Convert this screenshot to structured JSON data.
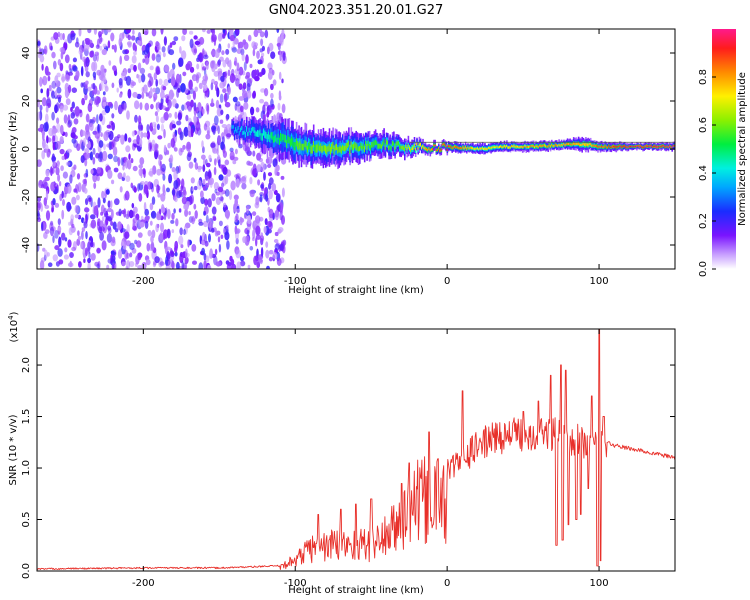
{
  "title": "GN04.2023.351.20.01.G27",
  "chart_data": [
    {
      "type": "heatmap",
      "xlabel": "Height of straight line (km)",
      "ylabel": "Frequency (Hz)",
      "xlim": [
        -270,
        150
      ],
      "ylim": [
        -50,
        50
      ],
      "xticks": [
        -200,
        -100,
        0,
        100
      ],
      "yticks": [
        -40,
        -20,
        0,
        20,
        40
      ],
      "noise_region_x": [
        -270,
        -115
      ],
      "ridge": {
        "x": [
          -140,
          -120,
          -100,
          -80,
          -60,
          -45,
          -30,
          -10,
          0,
          20,
          40,
          60,
          80,
          90,
          100,
          120,
          150
        ],
        "center_hz": [
          8,
          6,
          2,
          0,
          1,
          2,
          1,
          0,
          1,
          0,
          1,
          1,
          2,
          2,
          1,
          1,
          1
        ],
        "halfwidth_hz": [
          4,
          7,
          8,
          7,
          6,
          5,
          4,
          2,
          2,
          2,
          2,
          2,
          2,
          3,
          2,
          1.5,
          1.5
        ],
        "peak_amp": [
          0.35,
          0.45,
          0.55,
          0.6,
          0.6,
          0.55,
          0.6,
          0.85,
          0.9,
          0.7,
          0.75,
          0.8,
          0.8,
          0.75,
          0.85,
          0.95,
          0.95
        ]
      },
      "colorbar": {
        "label": "Normalized spectral amplitude",
        "range": [
          0,
          1
        ],
        "ticks": [
          0.0,
          0.2,
          0.4,
          0.6,
          0.8
        ]
      }
    },
    {
      "type": "line",
      "xlabel": "Height of straight line (km)",
      "ylabel": "SNR (10 * v/v)",
      "yexp": "(x10",
      "yexp_sup": "4",
      "yexp_close": ")",
      "xlim": [
        -270,
        150
      ],
      "ylim": [
        0,
        2.35
      ],
      "xticks": [
        -200,
        -100,
        0,
        100
      ],
      "yticks": [
        0.0,
        0.5,
        1.0,
        1.5,
        2.0
      ],
      "color": "#e8302a",
      "envelope": {
        "x": [
          -270,
          -200,
          -150,
          -110,
          -100,
          -90,
          -75,
          -60,
          -50,
          -35,
          -25,
          -20,
          -10,
          0,
          10,
          20,
          30,
          40,
          50,
          60,
          65,
          70,
          75,
          80,
          85,
          90,
          95,
          100,
          105,
          110,
          120,
          130,
          140,
          150
        ],
        "y": [
          0.02,
          0.03,
          0.03,
          0.05,
          0.15,
          0.3,
          0.35,
          0.35,
          0.35,
          0.55,
          0.8,
          0.9,
          0.95,
          1.0,
          1.1,
          1.25,
          1.32,
          1.35,
          1.37,
          1.38,
          1.38,
          1.36,
          1.33,
          1.32,
          1.3,
          1.28,
          1.27,
          1.27,
          1.25,
          1.22,
          1.19,
          1.16,
          1.13,
          1.1
        ]
      },
      "spikes": [
        {
          "x": -85,
          "y": 0.55
        },
        {
          "x": -70,
          "y": 0.6
        },
        {
          "x": -60,
          "y": 0.65
        },
        {
          "x": -50,
          "y": 0.7
        },
        {
          "x": -30,
          "y": 0.85
        },
        {
          "x": -25,
          "y": 1.05
        },
        {
          "x": -12,
          "y": 1.35
        },
        {
          "x": 10,
          "y": 1.75
        },
        {
          "x": 50,
          "y": 1.55
        },
        {
          "x": 60,
          "y": 1.65
        },
        {
          "x": 68,
          "y": 1.9
        },
        {
          "x": 72,
          "y": 2.1
        },
        {
          "x": 75,
          "y": 2.0
        },
        {
          "x": 78,
          "y": 1.95
        },
        {
          "x": 88,
          "y": 1.75
        },
        {
          "x": 95,
          "y": 1.7
        },
        {
          "x": 100,
          "y": 2.35
        },
        {
          "x": 103,
          "y": 1.5
        }
      ],
      "dips": [
        {
          "x": 72,
          "y": 0.25
        },
        {
          "x": 76,
          "y": 0.3
        },
        {
          "x": 80,
          "y": 0.45
        },
        {
          "x": 85,
          "y": 0.5
        },
        {
          "x": 88,
          "y": 0.55
        },
        {
          "x": 93,
          "y": 0.8
        },
        {
          "x": 99,
          "y": 0.05
        },
        {
          "x": 101,
          "y": 0.1
        }
      ]
    }
  ]
}
